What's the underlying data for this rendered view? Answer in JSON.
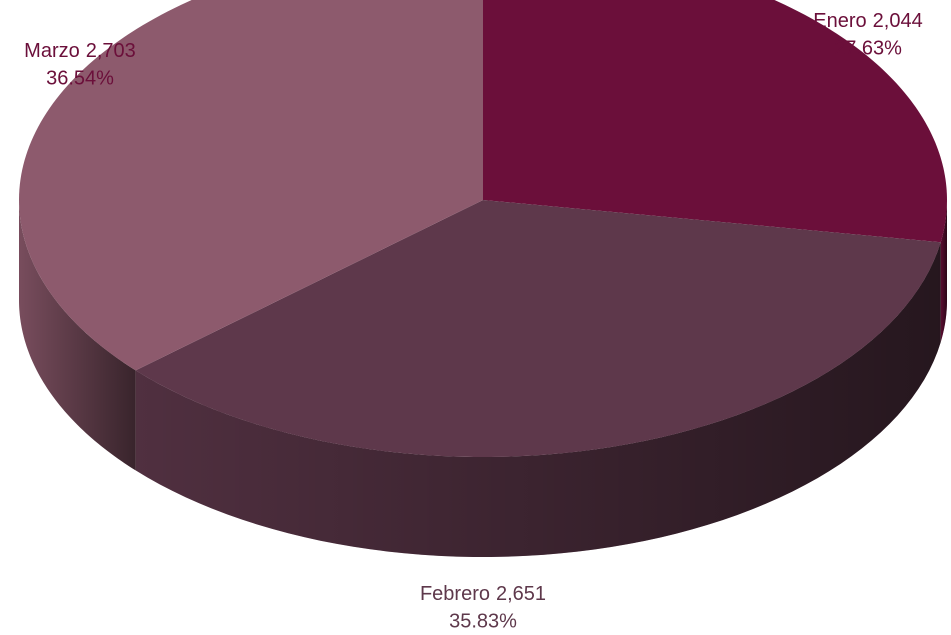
{
  "chart_data": {
    "type": "pie3d",
    "categories": [
      "Enero",
      "Febrero",
      "Marzo"
    ],
    "values": [
      2044,
      2651,
      2703
    ],
    "value_labels": [
      "2,044",
      "2,651",
      "2,703"
    ],
    "percents": [
      27.63,
      35.83,
      36.54
    ],
    "percent_labels": [
      "27.63%",
      "35.83%",
      "36.54%"
    ],
    "colors": [
      "#6b0f3a",
      "#5e384b",
      "#8d5a6d"
    ]
  }
}
